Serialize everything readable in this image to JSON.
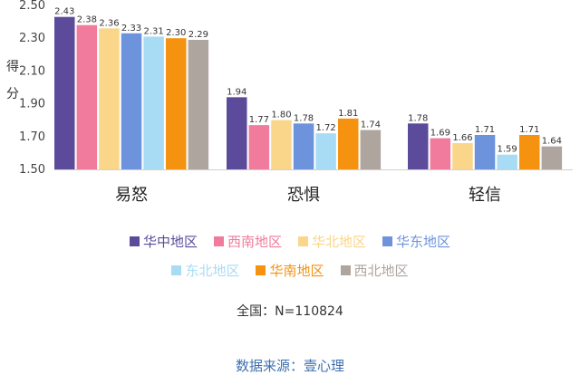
{
  "chart_data": {
    "type": "bar",
    "categories": [
      "易怒",
      "恐惧",
      "轻信"
    ],
    "series": [
      {
        "name": "华中地区",
        "color": "#5b4b9a",
        "values": [
          2.43,
          1.94,
          1.78
        ]
      },
      {
        "name": "西南地区",
        "color": "#f07b9c",
        "values": [
          2.38,
          1.77,
          1.69
        ]
      },
      {
        "name": "华北地区",
        "color": "#f9d68a",
        "values": [
          2.36,
          1.8,
          1.66
        ]
      },
      {
        "name": "华东地区",
        "color": "#6d93dd",
        "values": [
          2.33,
          1.78,
          1.71
        ]
      },
      {
        "name": "东北地区",
        "color": "#a7dcf4",
        "values": [
          2.31,
          1.72,
          1.59
        ]
      },
      {
        "name": "华南地区",
        "color": "#f5920f",
        "values": [
          2.3,
          1.81,
          1.71
        ]
      },
      {
        "name": "西北地区",
        "color": "#afa59f",
        "values": [
          2.29,
          1.74,
          1.64
        ]
      }
    ],
    "ylabel": "得分",
    "ylim": [
      1.5,
      2.5
    ],
    "yticks": [
      "1.50",
      "1.70",
      "1.90",
      "2.10",
      "2.30",
      "2.50"
    ],
    "grid": false,
    "legend": "bottom"
  },
  "note": "全国：N=110824",
  "source": "数据来源：壹心理"
}
